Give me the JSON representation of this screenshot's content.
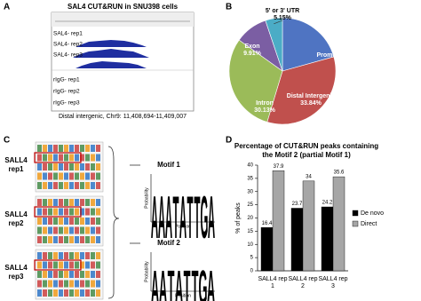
{
  "panels": {
    "a": {
      "letter": "A",
      "title": "SAL4 CUT&RUN in SNU398 cells",
      "tracks": [
        "SAL4- rep1",
        "SAL4- rep2",
        "SAL4- rep3",
        "rIgG- rep1",
        "rIgG- rep2",
        "rIgG- rep3"
      ],
      "caption": "Distal intergenic, Chr9: 11,408,694-11,409,007"
    },
    "b": {
      "letter": "B"
    },
    "c": {
      "letter": "C",
      "samples": [
        "SALL4 rep1",
        "SALL4 rep2",
        "SALL4 rep3"
      ],
      "motifs": [
        {
          "name": "Motif 1",
          "ylabel": "Probability",
          "xlabel": "Position",
          "letters": [
            "A",
            "A",
            "A",
            "T",
            "A",
            "T",
            "T",
            "G",
            "A"
          ]
        },
        {
          "name": "Motif 2",
          "ylabel": "Probability",
          "xlabel": "Position",
          "letters": [
            "A",
            "A",
            "T",
            "A",
            "T",
            "T",
            "G",
            "A"
          ]
        }
      ]
    },
    "d": {
      "letter": "D"
    }
  },
  "chart_data": [
    {
      "type": "pie",
      "categories": [
        "Promoter",
        "Distal Intergenic",
        "Intron",
        "Exon",
        "5' or 3' UTR"
      ],
      "values": [
        20.6,
        33.84,
        30.13,
        9.91,
        5.15
      ],
      "value_labels": [
        "20.6%",
        "33.84%",
        "30.13%",
        "9.91%",
        "5.15%"
      ],
      "colors": [
        "#4f74c2",
        "#c0504d",
        "#9bbb59",
        "#7b5ea3",
        "#4bacc6"
      ]
    },
    {
      "type": "bar",
      "title": "Percentage of CUT&RUN peaks containing the Motif 2 (partial Motif 1)",
      "ylabel": "% of peaks",
      "categories": [
        "SALL4 rep 1",
        "SALL4 rep 2",
        "SALL4 rep 3"
      ],
      "series": [
        {
          "name": "De novo",
          "color": "#000000",
          "values": [
            16.4,
            23.7,
            24.2
          ]
        },
        {
          "name": "Direct",
          "color": "#a6a6a6",
          "values": [
            37.9,
            34,
            35.6
          ]
        }
      ],
      "ylim": [
        0,
        40
      ],
      "yticks": [
        0,
        5,
        10,
        15,
        20,
        25,
        30,
        35,
        40
      ],
      "grid": false
    }
  ]
}
